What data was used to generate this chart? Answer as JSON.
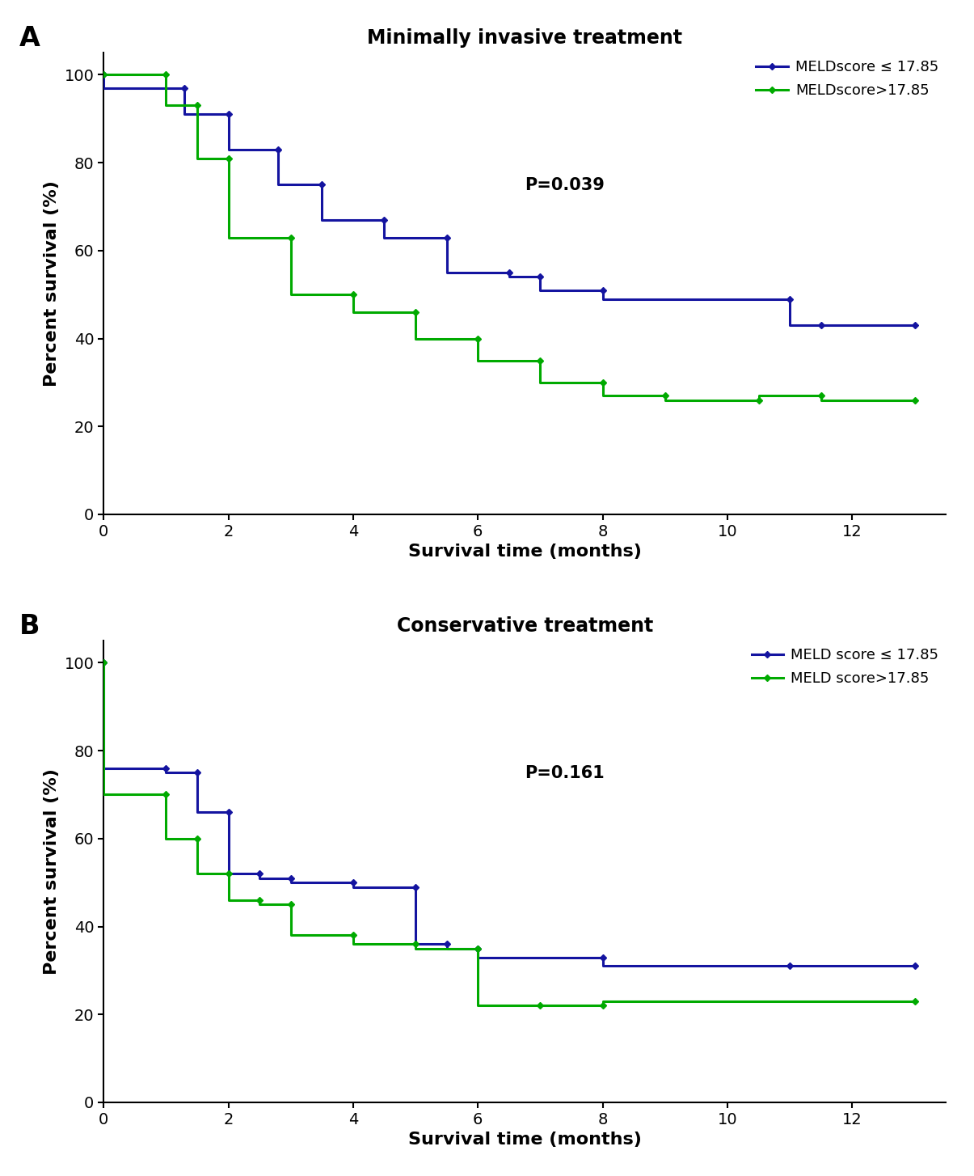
{
  "panel_A": {
    "title": "Minimally invasive treatment",
    "label": "A",
    "pvalue": "P=0.039",
    "blue_label": "MELDscore ≤ 17.85",
    "green_label": "MELDscore>17.85",
    "blue_x": [
      0,
      0,
      1.3,
      1.3,
      2.0,
      2.0,
      2.8,
      2.8,
      3.5,
      3.5,
      4.5,
      4.5,
      5.5,
      5.5,
      6.5,
      6.5,
      7.0,
      7.0,
      8.0,
      8.0,
      11.0,
      11.0,
      11.5,
      11.5,
      13.0
    ],
    "blue_y": [
      100,
      97,
      97,
      91,
      91,
      83,
      83,
      75,
      75,
      67,
      67,
      63,
      63,
      55,
      55,
      54,
      54,
      51,
      51,
      49,
      49,
      43,
      43,
      43,
      43
    ],
    "green_x": [
      0,
      0,
      1.0,
      1.0,
      1.5,
      1.5,
      2.0,
      2.0,
      3.0,
      3.0,
      4.0,
      4.0,
      5.0,
      5.0,
      6.0,
      6.0,
      7.0,
      7.0,
      8.0,
      8.0,
      9.0,
      9.0,
      10.5,
      10.5,
      11.5,
      11.5,
      13.0
    ],
    "green_y": [
      100,
      100,
      100,
      93,
      93,
      81,
      81,
      63,
      63,
      50,
      50,
      46,
      46,
      40,
      40,
      35,
      35,
      30,
      30,
      27,
      27,
      26,
      26,
      27,
      27,
      26,
      26
    ]
  },
  "panel_B": {
    "title": "Conservative treatment",
    "label": "B",
    "pvalue": "P=0.161",
    "blue_label": "MELD score ≤ 17.85",
    "green_label": "MELD score>17.85",
    "blue_x": [
      0,
      0,
      1.0,
      1.0,
      1.5,
      1.5,
      2.0,
      2.0,
      2.5,
      2.5,
      3.0,
      3.0,
      4.0,
      4.0,
      5.0,
      5.0,
      5.5,
      5.5,
      6.0,
      6.0,
      8.0,
      8.0,
      11.0,
      11.0,
      13.0
    ],
    "blue_y": [
      100,
      76,
      76,
      75,
      75,
      66,
      66,
      52,
      52,
      51,
      51,
      50,
      50,
      49,
      49,
      36,
      36,
      35,
      35,
      33,
      33,
      31,
      31,
      31,
      31
    ],
    "green_x": [
      0,
      0,
      1.0,
      1.0,
      1.5,
      1.5,
      2.0,
      2.0,
      2.5,
      2.5,
      3.0,
      3.0,
      4.0,
      4.0,
      5.0,
      5.0,
      6.0,
      6.0,
      7.0,
      7.0,
      8.0,
      8.0,
      13.0
    ],
    "green_y": [
      100,
      70,
      70,
      60,
      60,
      52,
      52,
      46,
      46,
      45,
      45,
      38,
      38,
      36,
      36,
      35,
      35,
      22,
      22,
      22,
      22,
      23,
      23
    ]
  },
  "blue_color": "#1414A0",
  "green_color": "#00AA00",
  "xlabel": "Survival time (months)",
  "ylabel": "Percent survival (%)",
  "xlim": [
    0,
    13.5
  ],
  "ylim": [
    0,
    105
  ],
  "xticks": [
    0,
    2,
    4,
    6,
    8,
    10,
    12
  ],
  "yticks": [
    0,
    20,
    40,
    60,
    80,
    100
  ],
  "linewidth": 2.2,
  "title_fontsize": 17,
  "label_fontsize": 24,
  "tick_labelsize": 14,
  "axis_labelsize": 16,
  "legend_fontsize": 13,
  "pvalue_fontsize": 15
}
